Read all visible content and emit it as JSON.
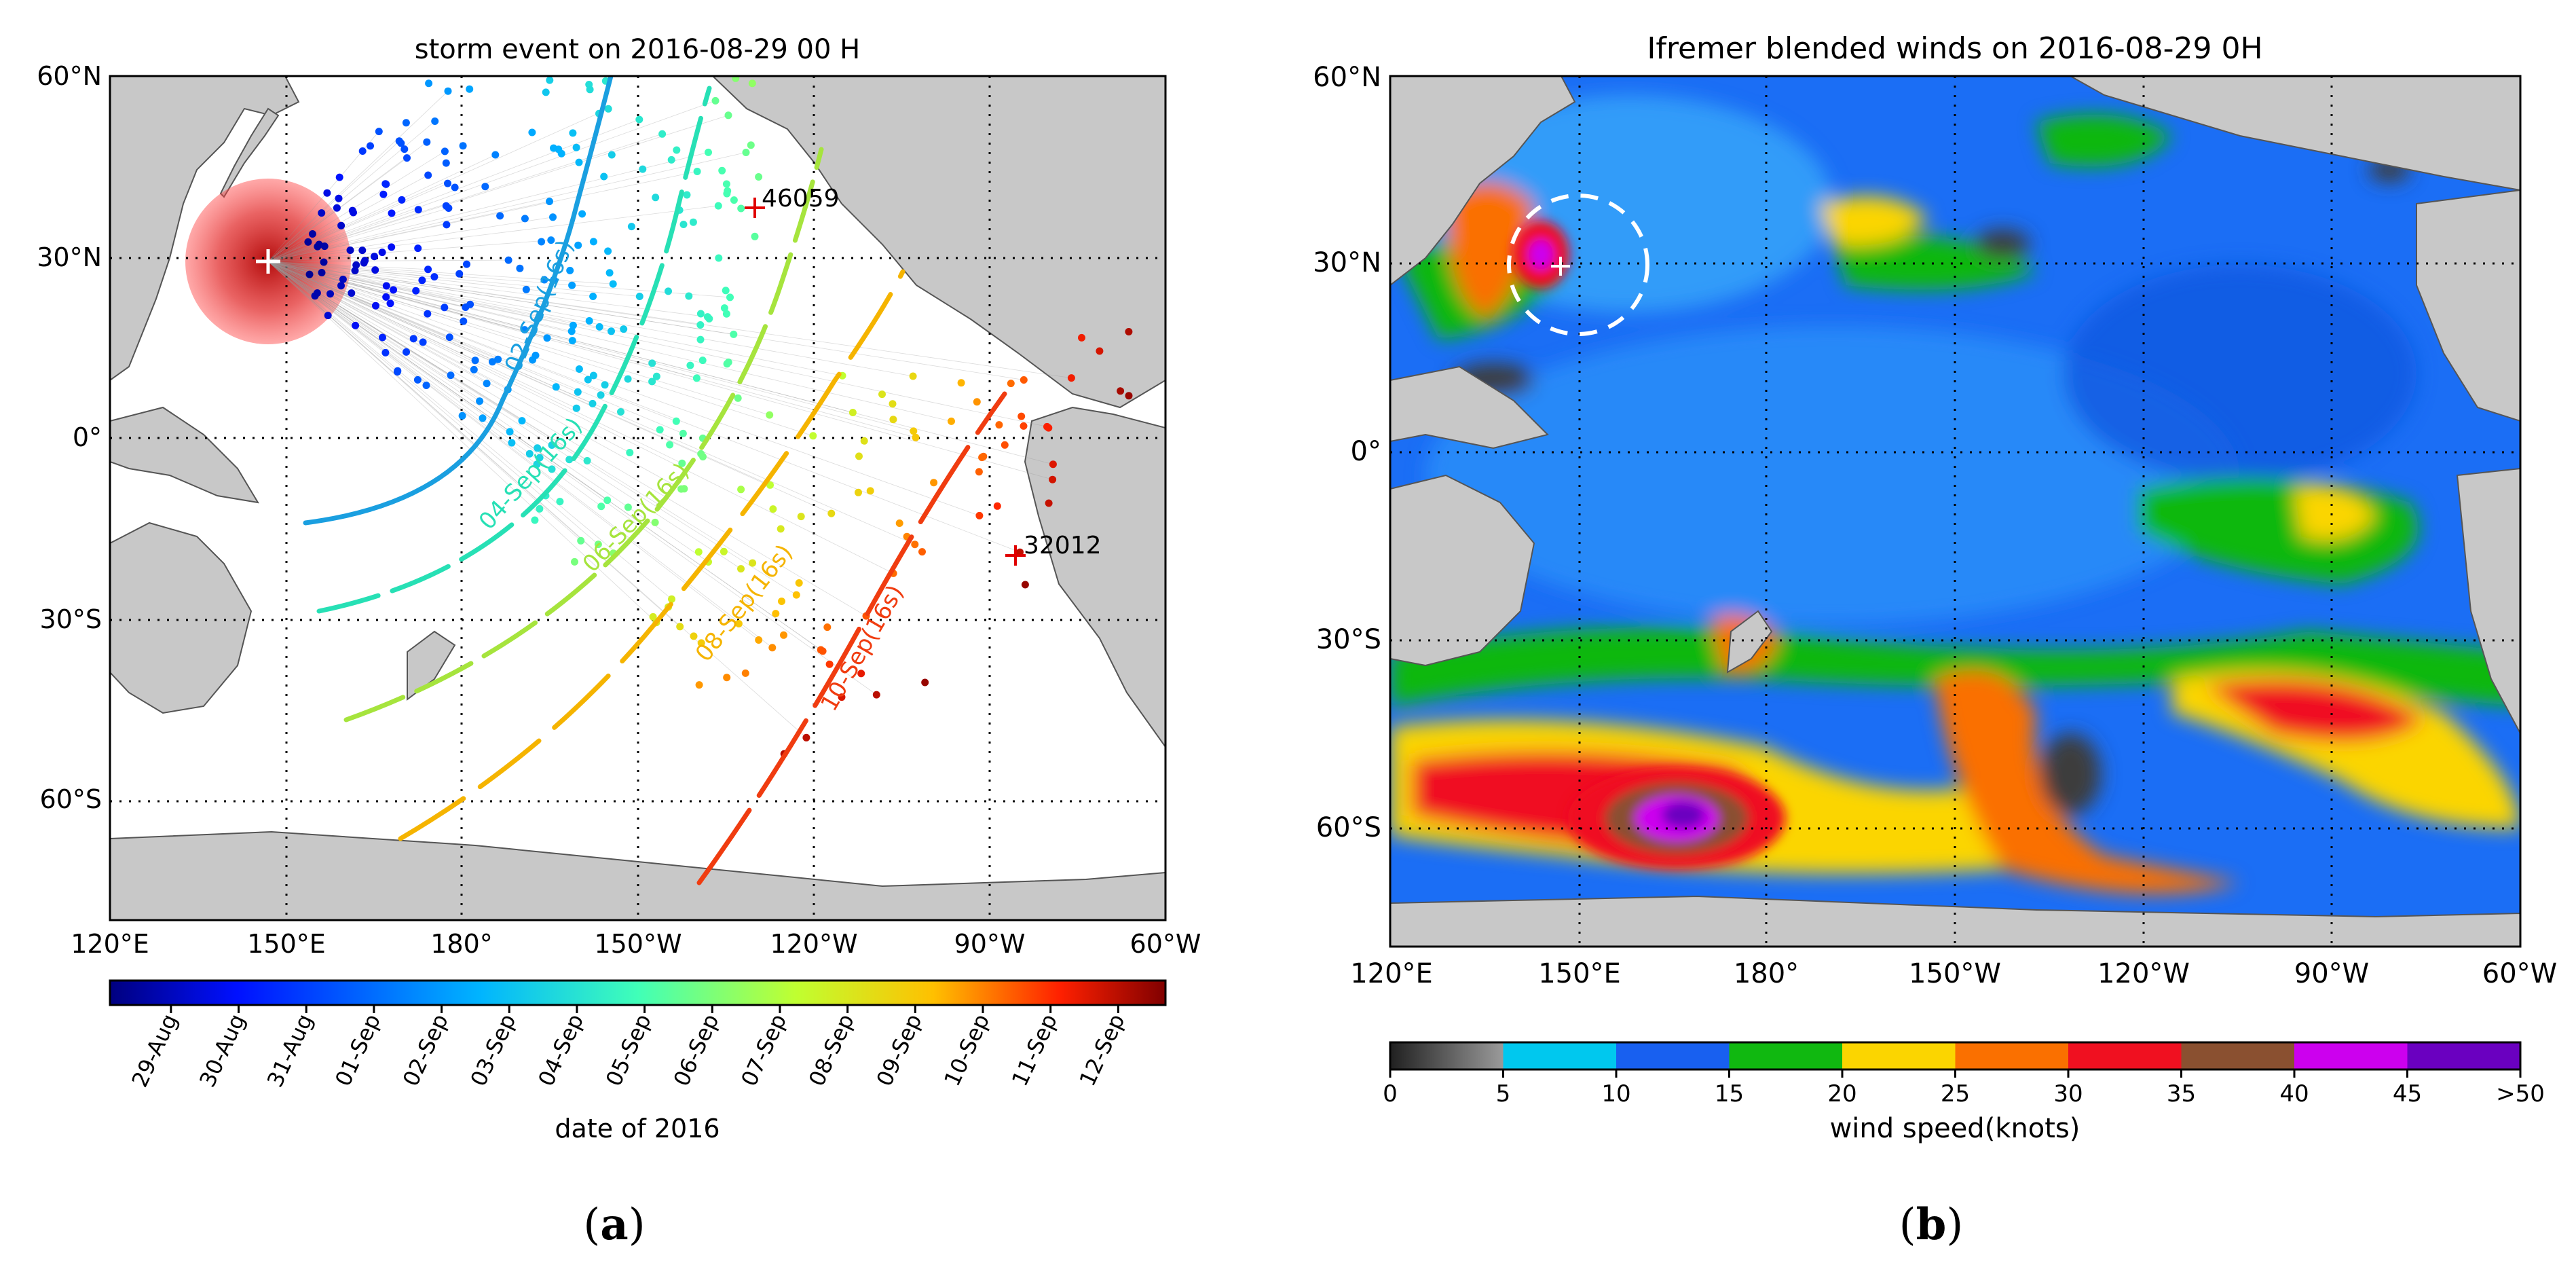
{
  "panel_a": {
    "title": "storm event on 2016-08-29 00 H",
    "lat_labels": [
      "60°N",
      "30°N",
      "0°",
      "30°S",
      "60°S"
    ],
    "lon_labels": [
      "120°E",
      "150°E",
      "180°",
      "150°W",
      "120°W",
      "90°W",
      "60°W"
    ],
    "stations": [
      {
        "id": "46059",
        "lon": -130,
        "lat": 38
      },
      {
        "id": "32012",
        "lon": -85,
        "lat": -19.5
      }
    ],
    "storm_center": {
      "lon": 152,
      "lat": 29
    },
    "isochrones": [
      {
        "label": "02-Sep(16s)",
        "color": "#1a9fe0"
      },
      {
        "label": "04-Sep(16s)",
        "color": "#27e0b5"
      },
      {
        "label": "06-Sep(16s)",
        "color": "#a6e43d"
      },
      {
        "label": "08-Sep(16s)",
        "color": "#f5b400"
      },
      {
        "label": "10-Sep(16s)",
        "color": "#f03c10"
      }
    ],
    "colorbar": {
      "ticks": [
        "29-Aug",
        "30-Aug",
        "31-Aug",
        "01-Sep",
        "02-Sep",
        "03-Sep",
        "04-Sep",
        "05-Sep",
        "06-Sep",
        "07-Sep",
        "08-Sep",
        "09-Sep",
        "10-Sep",
        "11-Sep",
        "12-Sep"
      ],
      "label": "date of 2016"
    },
    "caption": "a"
  },
  "panel_b": {
    "title": "Ifremer blended winds on 2016-08-29 0H",
    "lat_labels": [
      "60°N",
      "30°N",
      "0°",
      "30°S",
      "60°S"
    ],
    "lon_labels": [
      "120°E",
      "150°E",
      "180°",
      "150°W",
      "120°W",
      "90°W",
      "60°W"
    ],
    "storm_center": {
      "lon": 152,
      "lat": 29
    },
    "colorbar": {
      "ticks": [
        "0",
        "5",
        "10",
        "15",
        "20",
        "25",
        "30",
        "35",
        "40",
        "45",
        ">50"
      ],
      "label": "wind speed(knots)",
      "colors": [
        "#3c3c3c",
        "#00c8ee",
        "#1860f0",
        "#10b810",
        "#fbd500",
        "#fa7000",
        "#f01020",
        "#8a5030",
        "#cc00ee",
        "#6a00c0"
      ]
    },
    "caption": "b"
  }
}
